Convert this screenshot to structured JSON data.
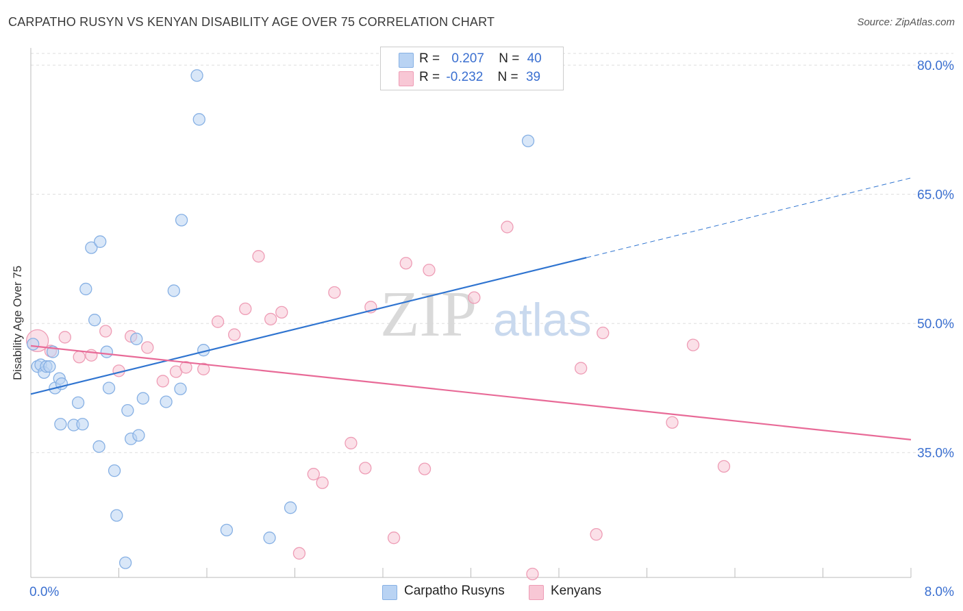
{
  "title": "CARPATHO RUSYN VS KENYAN DISABILITY AGE OVER 75 CORRELATION CHART",
  "source": "Source: ZipAtlas.com",
  "watermark": {
    "zip": "ZIP",
    "atlas": "atlas"
  },
  "legend": {
    "rows": [
      {
        "r_label": "R =",
        "r_value": "0.207",
        "n_label": "N =",
        "n_value": "40"
      },
      {
        "r_label": "R =",
        "r_value": "-0.232",
        "n_label": "N =",
        "n_value": "39"
      }
    ]
  },
  "bottom_legend": {
    "series1": "Carpatho Rusyns",
    "series2": "Kenyans"
  },
  "colors": {
    "blue_fill": "#b9d3f3",
    "blue_stroke": "#86b0e4",
    "blue_line": "#2f74d0",
    "pink_fill": "#f8c7d5",
    "pink_stroke": "#ee9cb5",
    "pink_line": "#e86a97",
    "tick_label": "#3a6fd0",
    "grid": "#dddddd"
  },
  "chart_data": {
    "type": "scatter",
    "title": "CARPATHO RUSYN VS KENYAN DISABILITY AGE OVER 75 CORRELATION CHART",
    "xlabel": "",
    "ylabel": "Disability Age Over 75",
    "xlim": [
      0.0,
      8.0
    ],
    "ylim": [
      20.5,
      82.0
    ],
    "x_tick_labels": [
      {
        "value": 0.0,
        "label": "0.0%"
      },
      {
        "value": 8.0,
        "label": "8.0%"
      }
    ],
    "y_ticks": [
      {
        "value": 35.0,
        "label": "35.0%"
      },
      {
        "value": 50.0,
        "label": "50.0%"
      },
      {
        "value": 65.0,
        "label": "65.0%"
      },
      {
        "value": 80.0,
        "label": "80.0%"
      }
    ],
    "series": [
      {
        "name": "Carpatho Rusyns",
        "color": "blue",
        "R": 0.207,
        "N": 40,
        "trend": {
          "x0": 0.0,
          "y0": 41.8,
          "x_solid_end": 5.05,
          "x1": 8.0,
          "y1": 66.9
        },
        "points": [
          [
            0.02,
            47.6
          ],
          [
            0.06,
            45.0
          ],
          [
            0.09,
            45.2
          ],
          [
            0.12,
            44.3
          ],
          [
            0.14,
            45.0
          ],
          [
            0.17,
            45.0
          ],
          [
            0.2,
            46.7
          ],
          [
            0.22,
            42.5
          ],
          [
            0.26,
            43.6
          ],
          [
            0.28,
            43.0
          ],
          [
            0.27,
            38.3
          ],
          [
            0.39,
            38.2
          ],
          [
            0.43,
            40.8
          ],
          [
            0.47,
            38.3
          ],
          [
            0.5,
            54.0
          ],
          [
            0.55,
            58.8
          ],
          [
            0.58,
            50.4
          ],
          [
            0.62,
            35.7
          ],
          [
            0.63,
            59.5
          ],
          [
            0.69,
            46.7
          ],
          [
            0.71,
            42.5
          ],
          [
            0.76,
            32.9
          ],
          [
            0.78,
            27.7
          ],
          [
            0.86,
            22.2
          ],
          [
            0.88,
            39.9
          ],
          [
            0.91,
            36.6
          ],
          [
            0.96,
            48.2
          ],
          [
            0.98,
            37.0
          ],
          [
            1.02,
            41.3
          ],
          [
            1.23,
            40.9
          ],
          [
            1.3,
            53.8
          ],
          [
            1.36,
            42.4
          ],
          [
            1.37,
            62.0
          ],
          [
            1.51,
            78.8
          ],
          [
            1.53,
            73.7
          ],
          [
            1.57,
            46.9
          ],
          [
            1.78,
            26.0
          ],
          [
            2.17,
            25.1
          ],
          [
            2.36,
            28.6
          ],
          [
            4.52,
            71.2
          ]
        ]
      },
      {
        "name": "Kenyans",
        "color": "pink",
        "R": -0.232,
        "N": 39,
        "trend": {
          "x0": 0.0,
          "y0": 47.4,
          "x1": 8.0,
          "y1": 36.5
        },
        "points": [
          [
            0.06,
            48.0
          ],
          [
            0.18,
            46.8
          ],
          [
            0.31,
            48.4
          ],
          [
            0.44,
            46.1
          ],
          [
            0.55,
            46.3
          ],
          [
            0.68,
            49.1
          ],
          [
            0.8,
            44.5
          ],
          [
            0.91,
            48.5
          ],
          [
            1.06,
            47.2
          ],
          [
            1.2,
            43.3
          ],
          [
            1.32,
            44.4
          ],
          [
            1.41,
            44.9
          ],
          [
            1.57,
            44.7
          ],
          [
            1.7,
            50.2
          ],
          [
            1.85,
            48.7
          ],
          [
            1.95,
            51.7
          ],
          [
            2.07,
            57.8
          ],
          [
            2.18,
            50.5
          ],
          [
            2.28,
            51.3
          ],
          [
            2.44,
            23.3
          ],
          [
            2.57,
            32.5
          ],
          [
            2.65,
            31.5
          ],
          [
            2.76,
            53.6
          ],
          [
            2.91,
            36.1
          ],
          [
            3.04,
            33.2
          ],
          [
            3.09,
            51.9
          ],
          [
            3.3,
            25.1
          ],
          [
            3.41,
            57.0
          ],
          [
            3.58,
            33.1
          ],
          [
            3.62,
            56.2
          ],
          [
            4.03,
            53.0
          ],
          [
            4.33,
            61.2
          ],
          [
            4.56,
            20.9
          ],
          [
            5.0,
            44.8
          ],
          [
            5.14,
            25.5
          ],
          [
            5.2,
            48.9
          ],
          [
            5.83,
            38.5
          ],
          [
            6.02,
            47.5
          ],
          [
            6.3,
            33.4
          ]
        ]
      }
    ]
  }
}
